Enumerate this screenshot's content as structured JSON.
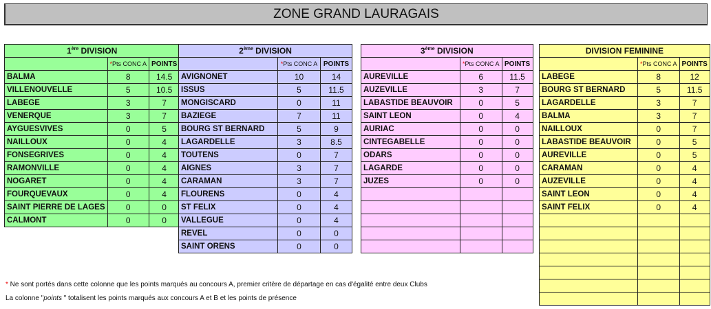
{
  "title": "ZONE GRAND LAURAGAIS",
  "col_conc": "Pts CONC A",
  "col_points": "POINTS",
  "star": "*",
  "colors": {
    "div1": "#99ff99",
    "div2": "#ccccff",
    "div3": "#ffccff",
    "fem": "#ffff99"
  },
  "tables": [
    {
      "id": "div1",
      "num": "1",
      "sup": "ère",
      "label": " DIVISION",
      "empty_rows": 0,
      "rows": [
        [
          "BALMA",
          "8",
          "14.5"
        ],
        [
          "VILLENOUVELLE",
          "5",
          "10.5"
        ],
        [
          "LABEGE",
          "3",
          "7"
        ],
        [
          "VENERQUE",
          "3",
          "7"
        ],
        [
          "AYGUESVIVES",
          "0",
          "5"
        ],
        [
          "NAILLOUX",
          "0",
          "4"
        ],
        [
          "FONSEGRIVES",
          "0",
          "4"
        ],
        [
          "RAMONVILLE",
          "0",
          "4"
        ],
        [
          "NOGARET",
          "0",
          "4"
        ],
        [
          "FOURQUEVAUX",
          "0",
          "4"
        ],
        [
          "SAINT PIERRE DE LAGES",
          "0",
          "0"
        ],
        [
          "CALMONT",
          "0",
          "0"
        ]
      ]
    },
    {
      "id": "div2",
      "num": "2",
      "sup": "ème",
      "label": " DIVISION",
      "empty_rows": 0,
      "rows": [
        [
          "AVIGNONET",
          "10",
          "14"
        ],
        [
          "ISSUS",
          "5",
          "11.5"
        ],
        [
          "MONGISCARD",
          "0",
          "11"
        ],
        [
          "BAZIEGE",
          "7",
          "11"
        ],
        [
          "BOURG ST BERNARD",
          "5",
          "9"
        ],
        [
          "LAGARDELLE",
          "3",
          "8.5"
        ],
        [
          "TOUTENS",
          "0",
          "7"
        ],
        [
          "AIGNES",
          "3",
          "7"
        ],
        [
          "CARAMAN",
          "3",
          "7"
        ],
        [
          "FLOURENS",
          "0",
          "4"
        ],
        [
          "ST FELIX",
          "0",
          "4"
        ],
        [
          "VALLEGUE",
          "0",
          "4"
        ],
        [
          "REVEL",
          "0",
          "0"
        ],
        [
          "SAINT ORENS",
          "0",
          "0"
        ]
      ]
    },
    {
      "id": "div3",
      "num": "3",
      "sup": "ème",
      "label": " DIVISION",
      "empty_rows": 5,
      "rows": [
        [
          "AUREVILLE",
          "6",
          "11.5"
        ],
        [
          "AUZEVILLE",
          "3",
          "7"
        ],
        [
          "LABASTIDE  BEAUVOIR",
          "0",
          "5"
        ],
        [
          "SAINT  LEON",
          "0",
          "4"
        ],
        [
          "AURIAC",
          "0",
          "0"
        ],
        [
          "CINTEGABELLE",
          "0",
          "0"
        ],
        [
          "ODARS",
          "0",
          "0"
        ],
        [
          "LAGARDE",
          "0",
          "0"
        ],
        [
          "JUZES",
          "0",
          "0"
        ]
      ]
    },
    {
      "id": "fem",
      "num": "",
      "sup": "",
      "label": "DIVISION FEMININE",
      "empty_rows": 7,
      "rows": [
        [
          "LABEGE",
          "8",
          "12"
        ],
        [
          "BOURG ST BERNARD",
          "5",
          "11.5"
        ],
        [
          "LAGARDELLE",
          "3",
          "7"
        ],
        [
          "BALMA",
          "3",
          "7"
        ],
        [
          "NAILLOUX",
          "0",
          "7"
        ],
        [
          "LABASTIDE BEAUVOIR",
          "0",
          "5"
        ],
        [
          "AUREVILLE",
          "0",
          "5"
        ],
        [
          "CARAMAN",
          "0",
          "4"
        ],
        [
          "AUZEVILLE",
          "0",
          "4"
        ],
        [
          "SAINT LEON",
          "0",
          "4"
        ],
        [
          "SAINT FELIX",
          "0",
          "4"
        ]
      ]
    }
  ],
  "notes": {
    "line1": " Ne sont portés dans cette colonne que les points marqués au concours A, premier critère de départage en cas d'égalité entre deux Clubs",
    "line2_a": "La colonne \"",
    "line2_em": "points",
    "line2_b": " \" totalisent les points marqués aux concours A et B et les points de présence"
  }
}
